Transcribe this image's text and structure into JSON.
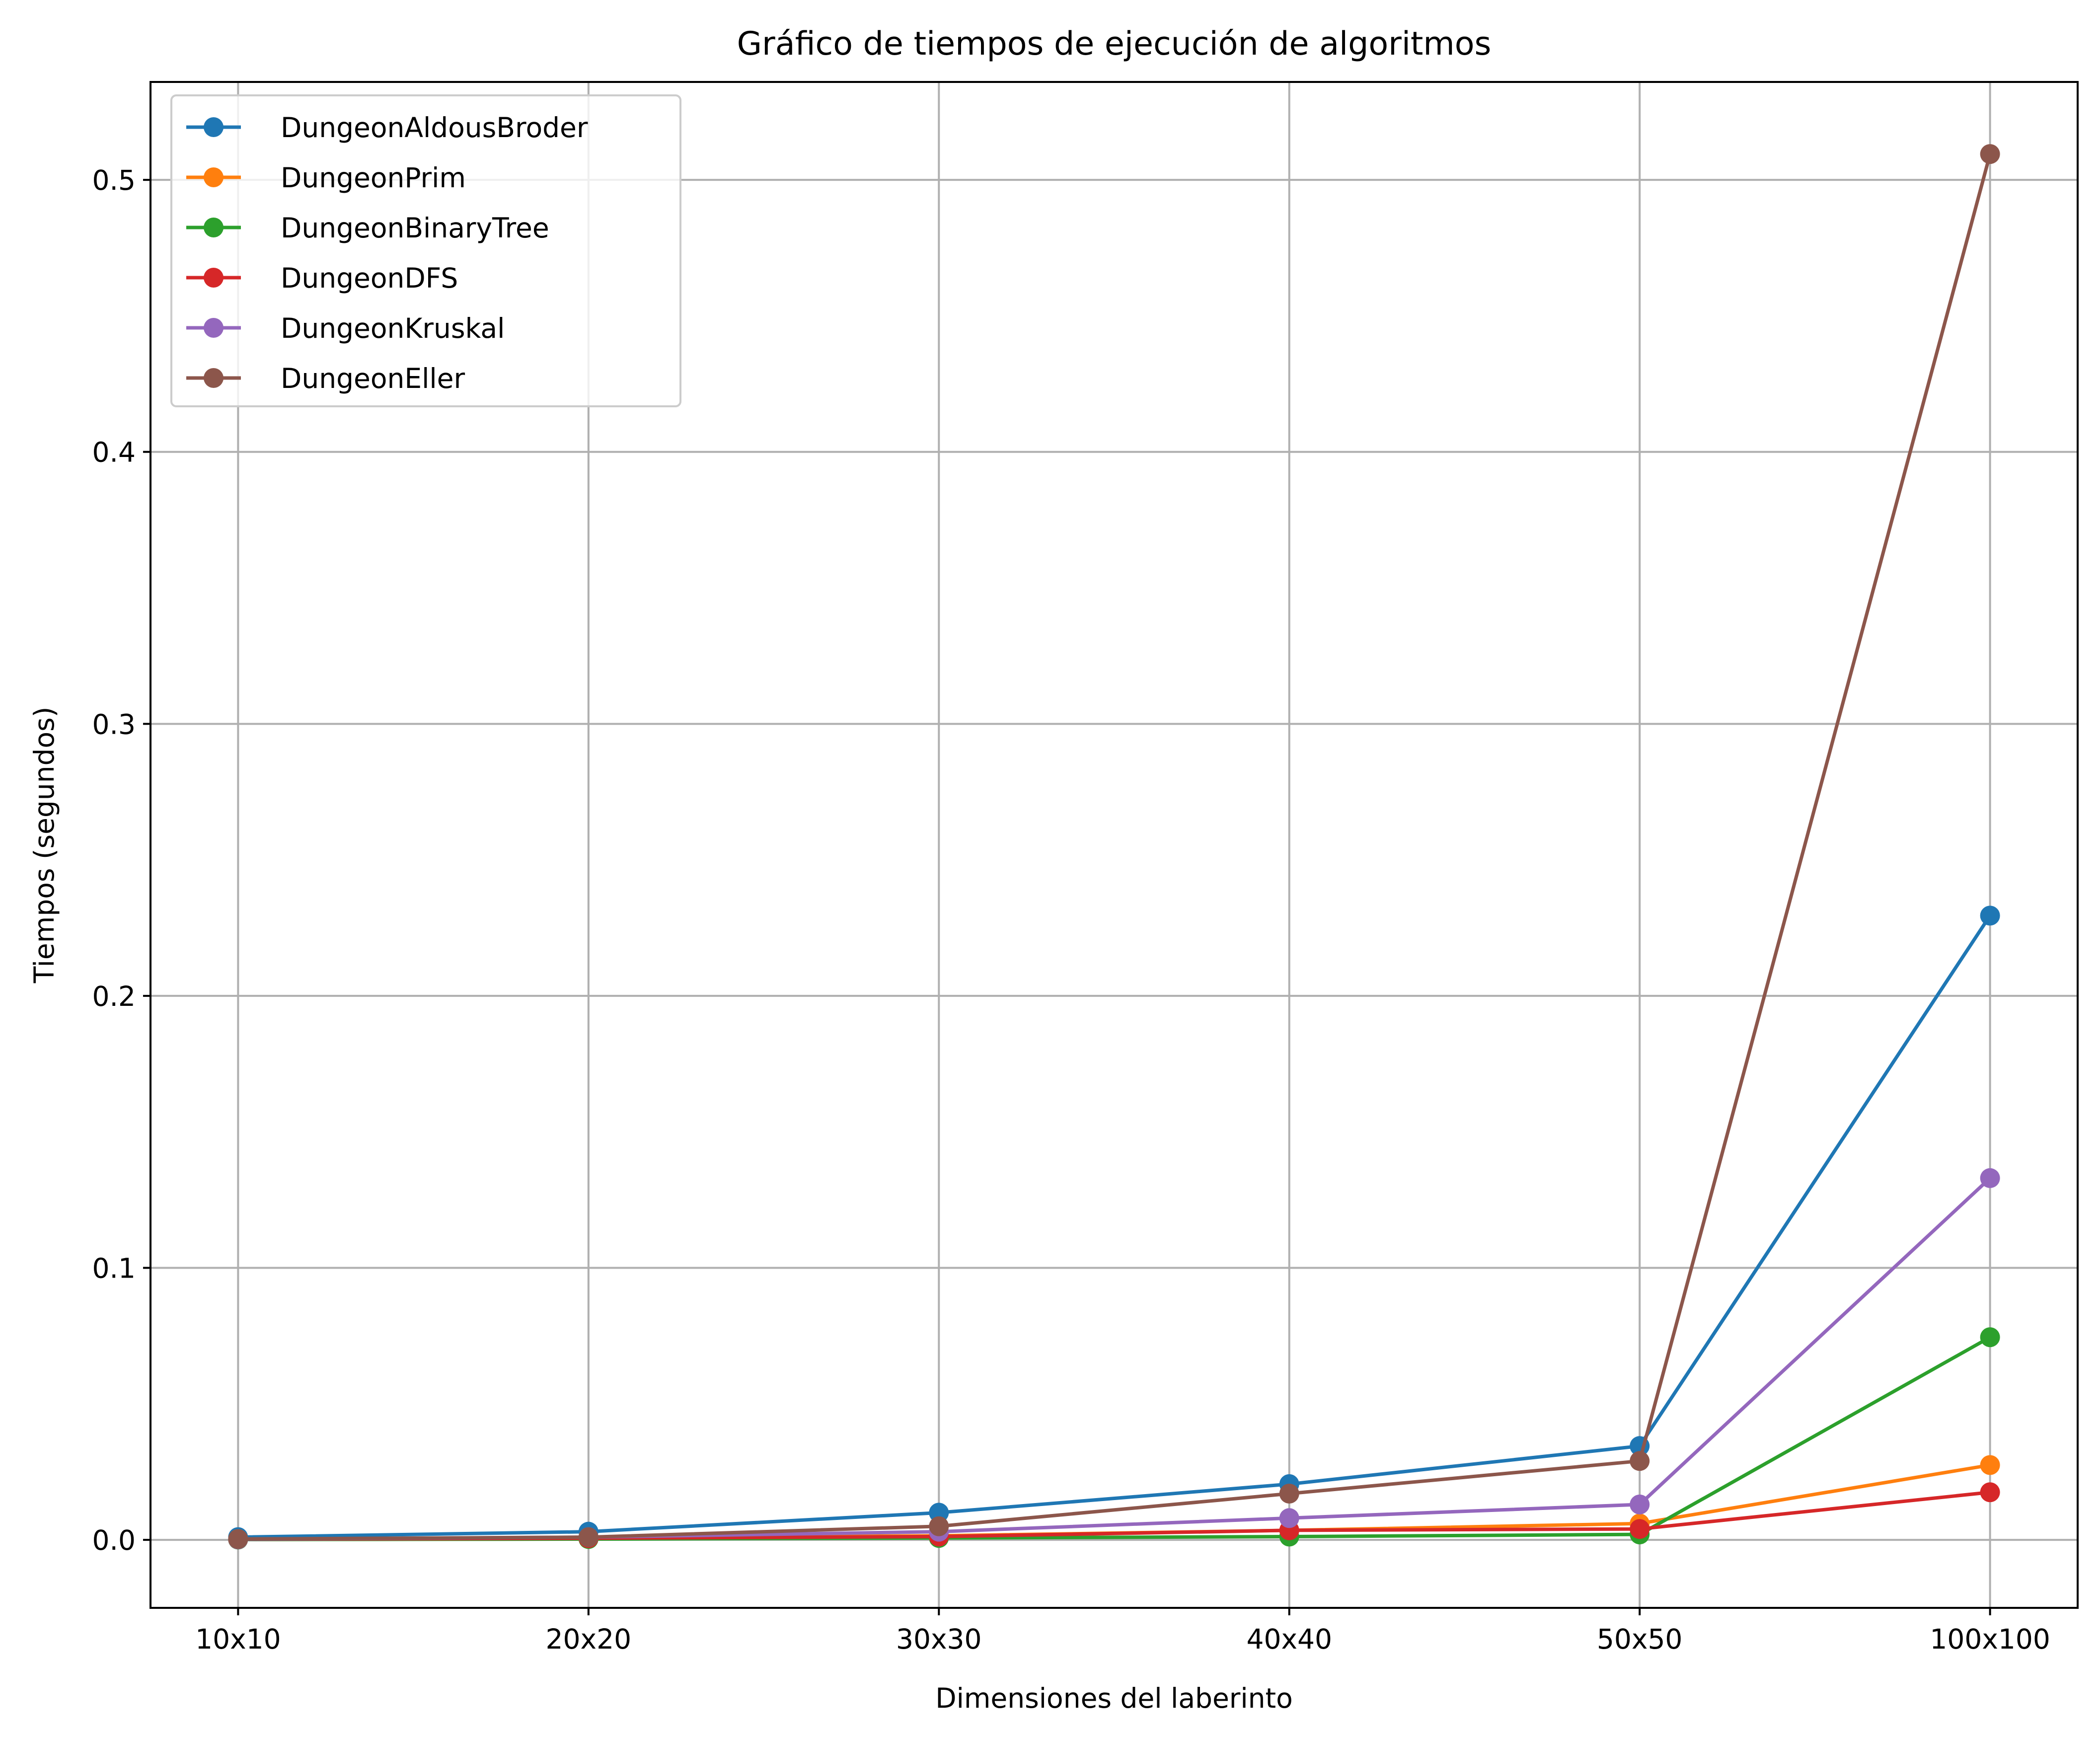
{
  "chart_data": {
    "type": "line",
    "title": "Gráfico de tiempos de ejecución de algoritmos",
    "xlabel": "Dimensiones del laberinto",
    "ylabel": "Tiempos (segundos)",
    "categories": [
      "10x10",
      "20x20",
      "30x30",
      "40x40",
      "50x50",
      "100x100"
    ],
    "ylim": [
      -0.025,
      0.536
    ],
    "yticks": [
      0.0,
      0.1,
      0.2,
      0.3,
      0.4,
      0.5
    ],
    "ytick_labels": [
      "0.0",
      "0.1",
      "0.2",
      "0.3",
      "0.4",
      "0.5"
    ],
    "grid": true,
    "legend_position": "top-left",
    "marker": "circle",
    "series": [
      {
        "name": "DungeonAldousBroder",
        "color": "#1f77b4",
        "values": [
          0.001,
          0.003,
          0.01,
          0.0205,
          0.0345,
          0.2295
        ]
      },
      {
        "name": "DungeonPrim",
        "color": "#ff7f0e",
        "values": [
          0.0003,
          0.0008,
          0.0015,
          0.0035,
          0.006,
          0.0275
        ]
      },
      {
        "name": "DungeonBinaryTree",
        "color": "#2ca02c",
        "values": [
          0.0001,
          0.0003,
          0.0007,
          0.0012,
          0.002,
          0.0745
        ]
      },
      {
        "name": "DungeonDFS",
        "color": "#d62728",
        "values": [
          0.0002,
          0.0006,
          0.0012,
          0.0035,
          0.004,
          0.0175
        ]
      },
      {
        "name": "DungeonKruskal",
        "color": "#9467bd",
        "values": [
          0.0002,
          0.001,
          0.003,
          0.008,
          0.013,
          0.133
        ]
      },
      {
        "name": "DungeonEller",
        "color": "#8c564b",
        "values": [
          0.0003,
          0.001,
          0.005,
          0.017,
          0.029,
          0.5095
        ]
      }
    ]
  }
}
